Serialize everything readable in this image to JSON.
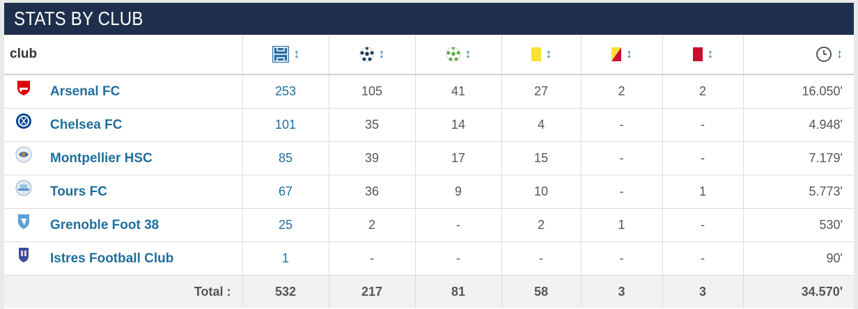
{
  "title": "STATS BY CLUB",
  "header": {
    "club": "club",
    "sort_glyph": "↕",
    "icons": [
      "appearances-field-icon",
      "goals-ball-icon",
      "assists-ball-icon",
      "yellow-card-icon",
      "second-yellow-card-icon",
      "red-card-icon",
      "minutes-clock-icon"
    ]
  },
  "rows": [
    {
      "club": "Arsenal FC",
      "crest": "arsenal-crest-icon",
      "apps": "253",
      "goals": "105",
      "assists": "41",
      "yellow": "27",
      "second_yellow": "2",
      "red": "2",
      "minutes": "16.050'"
    },
    {
      "club": "Chelsea FC",
      "crest": "chelsea-crest-icon",
      "apps": "101",
      "goals": "35",
      "assists": "14",
      "yellow": "4",
      "second_yellow": "-",
      "red": "-",
      "minutes": "4.948'"
    },
    {
      "club": "Montpellier HSC",
      "crest": "montpellier-crest-icon",
      "apps": "85",
      "goals": "39",
      "assists": "17",
      "yellow": "15",
      "second_yellow": "-",
      "red": "-",
      "minutes": "7.179'"
    },
    {
      "club": "Tours FC",
      "crest": "tours-crest-icon",
      "apps": "67",
      "goals": "36",
      "assists": "9",
      "yellow": "10",
      "second_yellow": "-",
      "red": "1",
      "minutes": "5.773'"
    },
    {
      "club": "Grenoble Foot 38",
      "crest": "grenoble-crest-icon",
      "apps": "25",
      "goals": "2",
      "assists": "-",
      "yellow": "2",
      "second_yellow": "1",
      "red": "-",
      "minutes": "530'"
    },
    {
      "club": "Istres Football Club",
      "crest": "istres-crest-icon",
      "apps": "1",
      "goals": "-",
      "assists": "-",
      "yellow": "-",
      "second_yellow": "-",
      "red": "-",
      "minutes": "90'"
    }
  ],
  "total": {
    "label": "Total :",
    "apps": "532",
    "goals": "217",
    "assists": "81",
    "yellow": "58",
    "second_yellow": "3",
    "red": "3",
    "minutes": "34.570'"
  },
  "colors": {
    "title_bg": "#1e2f4d",
    "link": "#1f6e9c",
    "sort": "#2a7ab0",
    "yellow_card": "#f7e135",
    "red_card": "#c8102e"
  }
}
